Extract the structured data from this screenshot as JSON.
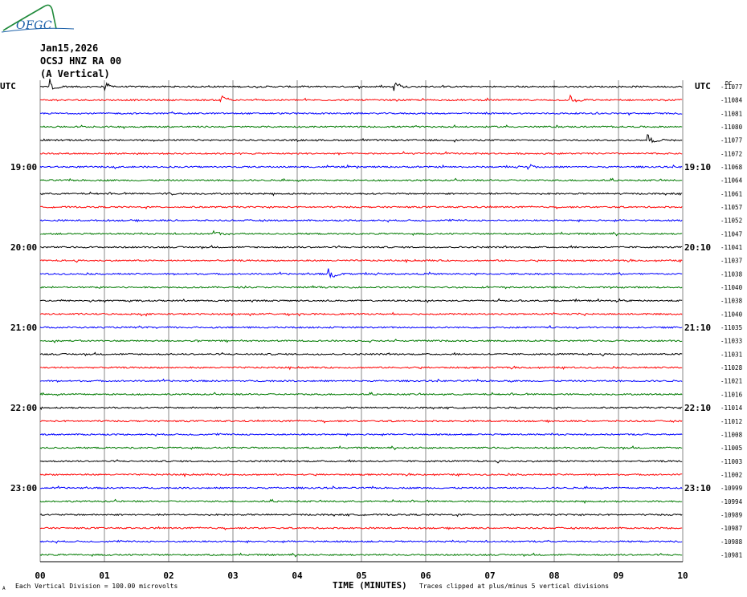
{
  "logo": {
    "text": "OFGC"
  },
  "header": {
    "date": "Jan15,2026",
    "station": "OCSJ HNZ RA 00",
    "component": "(A Vertical)"
  },
  "axes": {
    "left_tz": "UTC",
    "right_tz": "UTC",
    "dc_label": "DC",
    "xlabel": "TIME (MINUTES)",
    "footer_left": "Each Vertical Division =  100.00 microvolts",
    "footer_right": "Traces clipped at plus/minus 5 vertical divisions",
    "footer_mark": "A"
  },
  "chart_data": {
    "type": "line",
    "title": "",
    "xlabel": "TIME (MINUTES)",
    "xlim": [
      0,
      10
    ],
    "x_ticks": [
      "00",
      "01",
      "02",
      "03",
      "04",
      "05",
      "06",
      "07",
      "08",
      "09",
      "10"
    ],
    "left_time_labels": [
      {
        "row": 6,
        "text": "19:00"
      },
      {
        "row": 12,
        "text": "20:00"
      },
      {
        "row": 18,
        "text": "21:00"
      },
      {
        "row": 24,
        "text": "22:00"
      },
      {
        "row": 30,
        "text": "23:00"
      }
    ],
    "right_time_labels": [
      {
        "row": 6,
        "text": "19:10"
      },
      {
        "row": 12,
        "text": "20:10"
      },
      {
        "row": 18,
        "text": "21:10"
      },
      {
        "row": 24,
        "text": "22:10"
      },
      {
        "row": 30,
        "text": "23:10"
      }
    ],
    "trace_colors": [
      "#000000",
      "#ff0000",
      "#0000ff",
      "#007a00"
    ],
    "dc_offsets": [
      -11077,
      -11084,
      -11081,
      -11080,
      -11077,
      -11072,
      -11068,
      -11064,
      -11061,
      -11057,
      -11052,
      -11047,
      -11041,
      -11037,
      -11038,
      -11040,
      -11038,
      -11040,
      -11035,
      -11033,
      -11031,
      -11028,
      -11021,
      -11016,
      -11014,
      -11012,
      -11008,
      -11005,
      -11003,
      -11002,
      -10999,
      -10994,
      -10989,
      -10987,
      -10988,
      -10981
    ],
    "events": [
      {
        "row": 0,
        "minute": 0.15,
        "amp": 3.2,
        "dur": 0.12
      },
      {
        "row": 0,
        "minute": 1.0,
        "amp": 2.2,
        "dur": 0.12
      },
      {
        "row": 0,
        "minute": 5.5,
        "amp": 3.0,
        "dur": 0.12
      },
      {
        "row": 1,
        "minute": 2.8,
        "amp": 2.2,
        "dur": 0.15
      },
      {
        "row": 1,
        "minute": 8.25,
        "amp": 1.6,
        "dur": 0.15
      },
      {
        "row": 4,
        "minute": 9.45,
        "amp": 2.0,
        "dur": 0.2
      },
      {
        "row": 6,
        "minute": 7.6,
        "amp": 1.2,
        "dur": 0.15
      },
      {
        "row": 8,
        "minute": 1.95,
        "amp": 1.0,
        "dur": 0.12
      },
      {
        "row": 11,
        "minute": 2.68,
        "amp": 1.7,
        "dur": 0.15
      },
      {
        "row": 14,
        "minute": 4.47,
        "amp": 2.8,
        "dur": 0.15
      },
      {
        "row": 19,
        "minute": 7.72,
        "amp": 0.9,
        "dur": 0.08
      },
      {
        "row": 22,
        "minute": 7.2,
        "amp": 0.4,
        "dur": 0.08
      }
    ]
  }
}
